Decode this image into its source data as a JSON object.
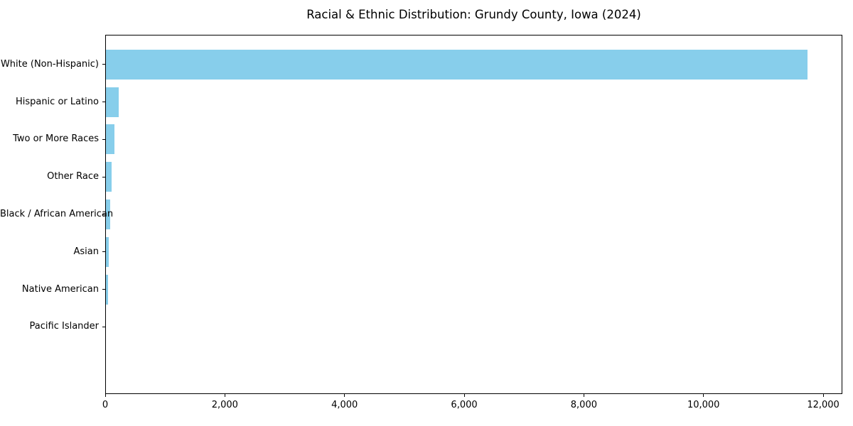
{
  "chart_data": {
    "type": "bar",
    "orientation": "horizontal",
    "title": "Racial & Ethnic Distribution: Grundy County, Iowa (2024)",
    "categories": [
      "White (Non-Hispanic)",
      "Hispanic or Latino",
      "Two or More Races",
      "Other Race",
      "Black / African American",
      "Asian",
      "Native American",
      "Pacific Islander"
    ],
    "values": [
      11735,
      225,
      155,
      110,
      85,
      55,
      45,
      5
    ],
    "xlabel": "",
    "ylabel": "",
    "xlim": [
      0,
      12320
    ],
    "xticks": [
      0,
      2000,
      4000,
      6000,
      8000,
      10000,
      12000
    ],
    "xtick_labels": [
      "0",
      "2,000",
      "4,000",
      "6,000",
      "8,000",
      "10,000",
      "12,000"
    ],
    "bar_color": "#87CEEB",
    "background_color": "#FFFFFF",
    "text_color": "#000000",
    "grid": false,
    "legend_position": "none"
  }
}
